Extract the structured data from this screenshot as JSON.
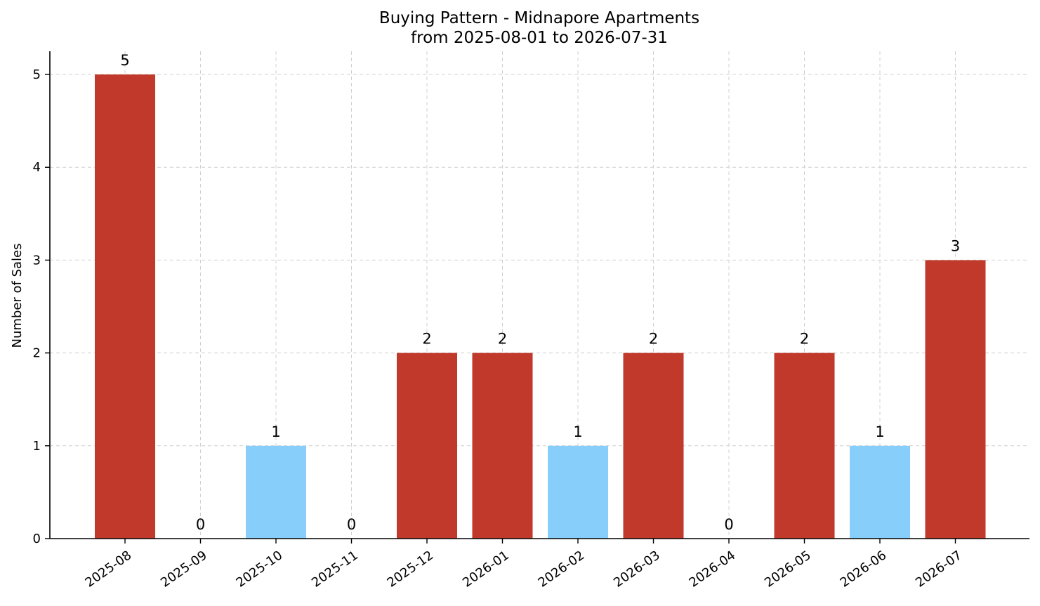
{
  "chart_data": {
    "type": "bar",
    "title": "Buying Pattern - Midnapore Apartments",
    "subtitle": "from 2025-08-01 to 2026-07-31",
    "xlabel": "",
    "ylabel": "Number of Sales",
    "categories": [
      "2025-08",
      "2025-09",
      "2025-10",
      "2025-11",
      "2025-12",
      "2026-01",
      "2026-02",
      "2026-03",
      "2026-04",
      "2026-05",
      "2026-06",
      "2026-07"
    ],
    "values": [
      5,
      0,
      1,
      0,
      2,
      2,
      1,
      2,
      0,
      2,
      1,
      3
    ],
    "data_labels": [
      "5",
      "0",
      "1",
      "0",
      "2",
      "2",
      "1",
      "2",
      "0",
      "2",
      "1",
      "3"
    ],
    "y_ticks": [
      0,
      1,
      2,
      3,
      4,
      5
    ],
    "y_tick_labels": [
      "0",
      "1",
      "2",
      "3",
      "4",
      "5"
    ],
    "ylim": [
      0,
      5.25
    ],
    "grid": true,
    "legend": "none",
    "colors": {
      "high": "#c0392b",
      "low": "#87cefa"
    }
  }
}
